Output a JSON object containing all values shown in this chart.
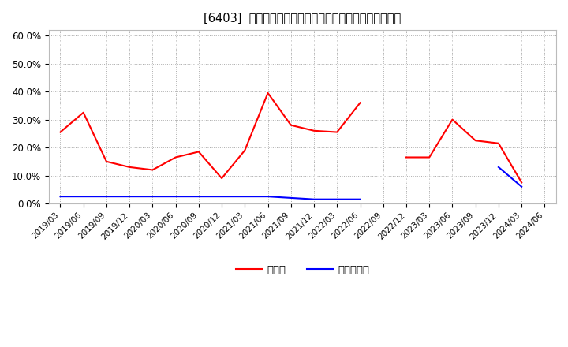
{
  "title": "[6403]  現頲金、有利子負債の総資産に対する比率の推移",
  "x_labels": [
    "2019/03",
    "2019/06",
    "2019/09",
    "2019/12",
    "2020/03",
    "2020/06",
    "2020/09",
    "2020/12",
    "2021/03",
    "2021/06",
    "2021/09",
    "2021/12",
    "2022/03",
    "2022/06",
    "2022/09",
    "2022/12",
    "2023/03",
    "2023/06",
    "2023/09",
    "2023/12",
    "2024/03",
    "2024/06"
  ],
  "cash_values": [
    25.5,
    32.5,
    15.0,
    13.0,
    12.0,
    16.5,
    18.5,
    9.0,
    19.0,
    39.5,
    28.0,
    26.0,
    25.5,
    36.0,
    null,
    16.5,
    16.5,
    30.0,
    22.5,
    21.5,
    7.5,
    null
  ],
  "debt_values": [
    2.5,
    2.5,
    2.5,
    2.5,
    2.5,
    2.5,
    2.5,
    2.5,
    2.5,
    2.5,
    2.0,
    1.5,
    1.5,
    1.5,
    null,
    null,
    null,
    null,
    null,
    13.0,
    6.0,
    null
  ],
  "cash_color": "#ff0000",
  "debt_color": "#0000ff",
  "background_color": "#ffffff",
  "grid_color": "#aaaaaa",
  "ylim_min": 0.0,
  "ylim_max": 0.62,
  "yticks": [
    0.0,
    0.1,
    0.2,
    0.3,
    0.4,
    0.5,
    0.6
  ],
  "ytick_labels": [
    "0.0%",
    "10.0%",
    "20.0%",
    "30.0%",
    "40.0%",
    "50.0%",
    "60.0%"
  ],
  "legend_cash": "現頲金",
  "legend_debt": "有利子負債",
  "linewidth": 1.5
}
